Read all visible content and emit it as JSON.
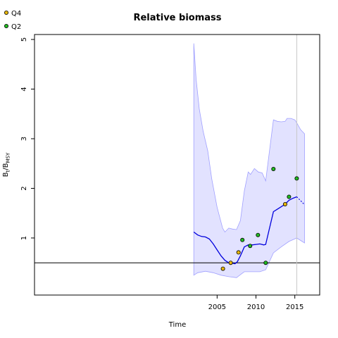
{
  "chart_data": {
    "type": "line",
    "title": "Relative biomass",
    "xlabel": "Time",
    "ylabel": {
      "base": "B",
      "sub1": "t",
      "mid": "/B",
      "sub2": "MSY"
    },
    "xlim": [
      1981.5,
      2018.2
    ],
    "ylim": [
      -0.15,
      5.1
    ],
    "x_ticks": [
      2005,
      2010,
      2015
    ],
    "y_ticks": [
      1,
      2,
      3,
      4,
      5
    ],
    "legend": {
      "placement": "top-left",
      "entries": [
        {
          "label": "Q4",
          "color": "#e8b70a"
        },
        {
          "label": "Q2",
          "color": "#22bb22"
        }
      ]
    },
    "reference_lines": {
      "horizontal_y": 0.5,
      "vertical_x": 2015.25
    },
    "colors": {
      "estimate": "#0000dd",
      "band_fill": "#e2e2ff",
      "band_edge": "#a0a0ff",
      "ref_h": "#000000",
      "ref_v": "#c8c8c8"
    },
    "estimate": [
      {
        "x": 2002.0,
        "y": 1.12
      },
      {
        "x": 2002.5,
        "y": 1.06
      },
      {
        "x": 2003.0,
        "y": 1.03
      },
      {
        "x": 2003.5,
        "y": 1.02
      },
      {
        "x": 2004.0,
        "y": 0.98
      },
      {
        "x": 2004.5,
        "y": 0.88
      },
      {
        "x": 2005.0,
        "y": 0.76
      },
      {
        "x": 2005.5,
        "y": 0.64
      },
      {
        "x": 2006.0,
        "y": 0.55
      },
      {
        "x": 2006.5,
        "y": 0.5
      },
      {
        "x": 2007.0,
        "y": 0.49
      },
      {
        "x": 2007.3,
        "y": 0.48
      },
      {
        "x": 2007.6,
        "y": 0.52
      },
      {
        "x": 2008.0,
        "y": 0.64
      },
      {
        "x": 2008.5,
        "y": 0.82
      },
      {
        "x": 2009.0,
        "y": 0.86
      },
      {
        "x": 2009.5,
        "y": 0.86
      },
      {
        "x": 2010.0,
        "y": 0.87
      },
      {
        "x": 2010.5,
        "y": 0.88
      },
      {
        "x": 2011.0,
        "y": 0.86
      },
      {
        "x": 2011.25,
        "y": 0.87
      },
      {
        "x": 2012.25,
        "y": 1.53
      },
      {
        "x": 2012.75,
        "y": 1.58
      },
      {
        "x": 2013.25,
        "y": 1.63
      },
      {
        "x": 2013.75,
        "y": 1.68
      },
      {
        "x": 2014.25,
        "y": 1.76
      },
      {
        "x": 2014.75,
        "y": 1.8
      },
      {
        "x": 2015.25,
        "y": 1.83
      }
    ],
    "forecast": [
      {
        "x": 2015.25,
        "y": 1.83
      },
      {
        "x": 2015.75,
        "y": 1.75
      },
      {
        "x": 2016.25,
        "y": 1.67
      }
    ],
    "ci_upper": [
      {
        "x": 2002.0,
        "y": 4.92
      },
      {
        "x": 2002.3,
        "y": 4.2
      },
      {
        "x": 2002.7,
        "y": 3.6
      },
      {
        "x": 2003.2,
        "y": 3.15
      },
      {
        "x": 2003.8,
        "y": 2.75
      },
      {
        "x": 2004.3,
        "y": 2.2
      },
      {
        "x": 2005.0,
        "y": 1.62
      },
      {
        "x": 2005.7,
        "y": 1.2
      },
      {
        "x": 2006.0,
        "y": 1.12
      },
      {
        "x": 2006.5,
        "y": 1.2
      },
      {
        "x": 2007.0,
        "y": 1.18
      },
      {
        "x": 2007.5,
        "y": 1.17
      },
      {
        "x": 2008.0,
        "y": 1.35
      },
      {
        "x": 2008.5,
        "y": 1.95
      },
      {
        "x": 2009.0,
        "y": 2.33
      },
      {
        "x": 2009.3,
        "y": 2.28
      },
      {
        "x": 2009.8,
        "y": 2.4
      },
      {
        "x": 2010.3,
        "y": 2.33
      },
      {
        "x": 2010.8,
        "y": 2.31
      },
      {
        "x": 2011.25,
        "y": 2.15
      },
      {
        "x": 2012.25,
        "y": 3.38
      },
      {
        "x": 2012.75,
        "y": 3.35
      },
      {
        "x": 2013.25,
        "y": 3.34
      },
      {
        "x": 2013.75,
        "y": 3.35
      },
      {
        "x": 2014.0,
        "y": 3.41
      },
      {
        "x": 2014.5,
        "y": 3.41
      },
      {
        "x": 2015.0,
        "y": 3.38
      },
      {
        "x": 2015.25,
        "y": 3.32
      },
      {
        "x": 2015.75,
        "y": 3.18
      },
      {
        "x": 2016.25,
        "y": 3.1
      }
    ],
    "ci_lower": [
      {
        "x": 2002.0,
        "y": 0.25
      },
      {
        "x": 2002.5,
        "y": 0.3
      },
      {
        "x": 2003.5,
        "y": 0.33
      },
      {
        "x": 2004.5,
        "y": 0.3
      },
      {
        "x": 2005.5,
        "y": 0.25
      },
      {
        "x": 2006.5,
        "y": 0.22
      },
      {
        "x": 2007.5,
        "y": 0.2
      },
      {
        "x": 2008.0,
        "y": 0.26
      },
      {
        "x": 2008.5,
        "y": 0.32
      },
      {
        "x": 2009.5,
        "y": 0.32
      },
      {
        "x": 2010.5,
        "y": 0.32
      },
      {
        "x": 2011.25,
        "y": 0.36
      },
      {
        "x": 2012.25,
        "y": 0.7
      },
      {
        "x": 2013.25,
        "y": 0.82
      },
      {
        "x": 2014.25,
        "y": 0.93
      },
      {
        "x": 2015.25,
        "y": 1.0
      },
      {
        "x": 2016.25,
        "y": 0.9
      }
    ],
    "observations": [
      {
        "x": 2005.75,
        "y": 0.38,
        "index": "Q4"
      },
      {
        "x": 2006.75,
        "y": 0.5,
        "index": "Q4"
      },
      {
        "x": 2007.75,
        "y": 0.71,
        "index": "Q4"
      },
      {
        "x": 2013.75,
        "y": 1.68,
        "index": "Q4"
      },
      {
        "x": 2008.25,
        "y": 0.96,
        "index": "Q2"
      },
      {
        "x": 2009.25,
        "y": 0.84,
        "index": "Q2"
      },
      {
        "x": 2010.25,
        "y": 1.06,
        "index": "Q2"
      },
      {
        "x": 2011.25,
        "y": 0.5,
        "index": "Q2"
      },
      {
        "x": 2012.25,
        "y": 2.39,
        "index": "Q2"
      },
      {
        "x": 2014.25,
        "y": 1.83,
        "index": "Q2"
      },
      {
        "x": 2015.25,
        "y": 2.2,
        "index": "Q2"
      }
    ]
  }
}
